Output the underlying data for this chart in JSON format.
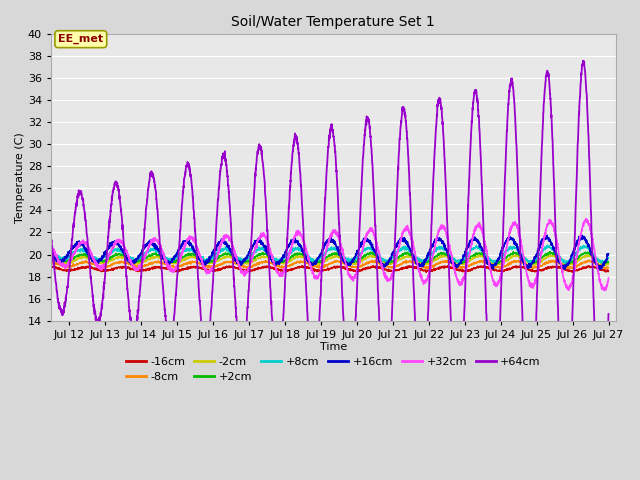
{
  "title": "Soil/Water Temperature Set 1",
  "xlabel": "Time",
  "ylabel": "Temperature (C)",
  "ylim": [
    14,
    40
  ],
  "yticks": [
    14,
    16,
    18,
    20,
    22,
    24,
    26,
    28,
    30,
    32,
    34,
    36,
    38,
    40
  ],
  "xlim_days": [
    11.5,
    27.2
  ],
  "xtick_days": [
    12,
    13,
    14,
    15,
    16,
    17,
    18,
    19,
    20,
    21,
    22,
    23,
    24,
    25,
    26,
    27
  ],
  "xtick_labels": [
    "Jul 12",
    "Jul 13",
    "Jul 14",
    "Jul 15",
    "Jul 16",
    "Jul 17",
    "Jul 18",
    "Jul 19",
    "Jul 20",
    "Jul 21",
    "Jul 22",
    "Jul 23",
    "Jul 24",
    "Jul 25",
    "Jul 26",
    "Jul 27"
  ],
  "series_colors": {
    "-16cm": "#cc0000",
    "-8cm": "#ff8800",
    "-2cm": "#cccc00",
    "+2cm": "#00bb00",
    "+8cm": "#00cccc",
    "+16cm": "#0000cc",
    "+32cm": "#ff44ff",
    "+64cm": "#9900cc"
  },
  "legend_order": [
    "-16cm",
    "-8cm",
    "-2cm",
    "+2cm",
    "+8cm",
    "+16cm",
    "+32cm",
    "+64cm"
  ],
  "annotation_text": "EE_met",
  "bg_color": "#e8e8e8",
  "fig_bg_color": "#d8d8d8",
  "title_fontsize": 10,
  "axis_fontsize": 8,
  "legend_fontsize": 8
}
